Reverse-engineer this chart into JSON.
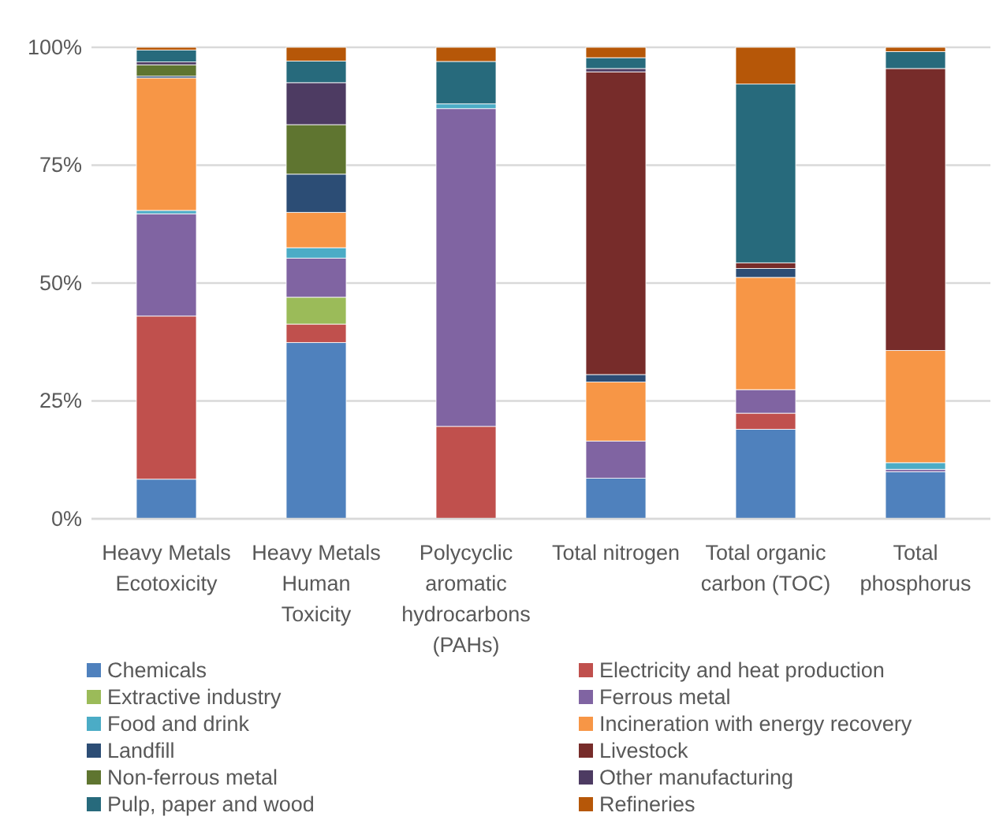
{
  "chart_data": {
    "type": "bar",
    "stacked": true,
    "categories": [
      "Heavy Metals Ecotoxicity",
      "Heavy Metals Human Toxicity",
      "Polycyclic aromatic hydrocarbons (PAHs)",
      "Total nitrogen",
      "Total organic carbon (TOC)",
      "Total phosphorus"
    ],
    "series": [
      {
        "name": "Chemicals",
        "color": "#4f81bd",
        "values": [
          8.4,
          37.4,
          0,
          8.6,
          19.0,
          10.0
        ]
      },
      {
        "name": "Electricity and heat production",
        "color": "#c0504d",
        "values": [
          34.6,
          3.9,
          19.6,
          0,
          3.4,
          0
        ]
      },
      {
        "name": "Extractive industry",
        "color": "#9bbb59",
        "values": [
          0,
          5.7,
          0,
          0,
          0,
          0
        ]
      },
      {
        "name": "Ferrous metal",
        "color": "#8064a2",
        "values": [
          21.7,
          8.3,
          67.4,
          7.9,
          5.0,
          0.5
        ]
      },
      {
        "name": "Food and drink",
        "color": "#4bacc6",
        "values": [
          0.7,
          2.2,
          1.0,
          0,
          0,
          1.4
        ]
      },
      {
        "name": "Incineration with energy recovery",
        "color": "#f79646",
        "values": [
          28.1,
          7.5,
          0,
          12.5,
          23.8,
          23.8
        ]
      },
      {
        "name": "Landfill",
        "color": "#2c4d75",
        "values": [
          0.4,
          8.1,
          0,
          1.6,
          1.9,
          0
        ]
      },
      {
        "name": "Livestock",
        "color": "#772c2a",
        "values": [
          0,
          0,
          0,
          64.2,
          1.2,
          59.8
        ]
      },
      {
        "name": "Non-ferrous metal",
        "color": "#5f7530",
        "values": [
          2.4,
          10.5,
          0,
          0,
          0,
          0
        ]
      },
      {
        "name": "Other manufacturing",
        "color": "#4d3b62",
        "values": [
          0.6,
          8.9,
          0,
          0.7,
          0,
          0
        ]
      },
      {
        "name": "Pulp, paper and wood",
        "color": "#276a7c",
        "values": [
          2.5,
          4.6,
          9.0,
          2.3,
          37.9,
          3.6
        ]
      },
      {
        "name": "Refineries",
        "color": "#b65708",
        "values": [
          0.6,
          2.9,
          3.0,
          2.2,
          7.8,
          0.9
        ]
      }
    ],
    "ylim": [
      0,
      100
    ],
    "yticks": [
      {
        "value": 0,
        "label": "0%"
      },
      {
        "value": 25,
        "label": "25%"
      },
      {
        "value": 50,
        "label": "50%"
      },
      {
        "value": 75,
        "label": "75%"
      },
      {
        "value": 100,
        "label": "100%"
      }
    ],
    "grid": "y",
    "legend": "bottom"
  }
}
